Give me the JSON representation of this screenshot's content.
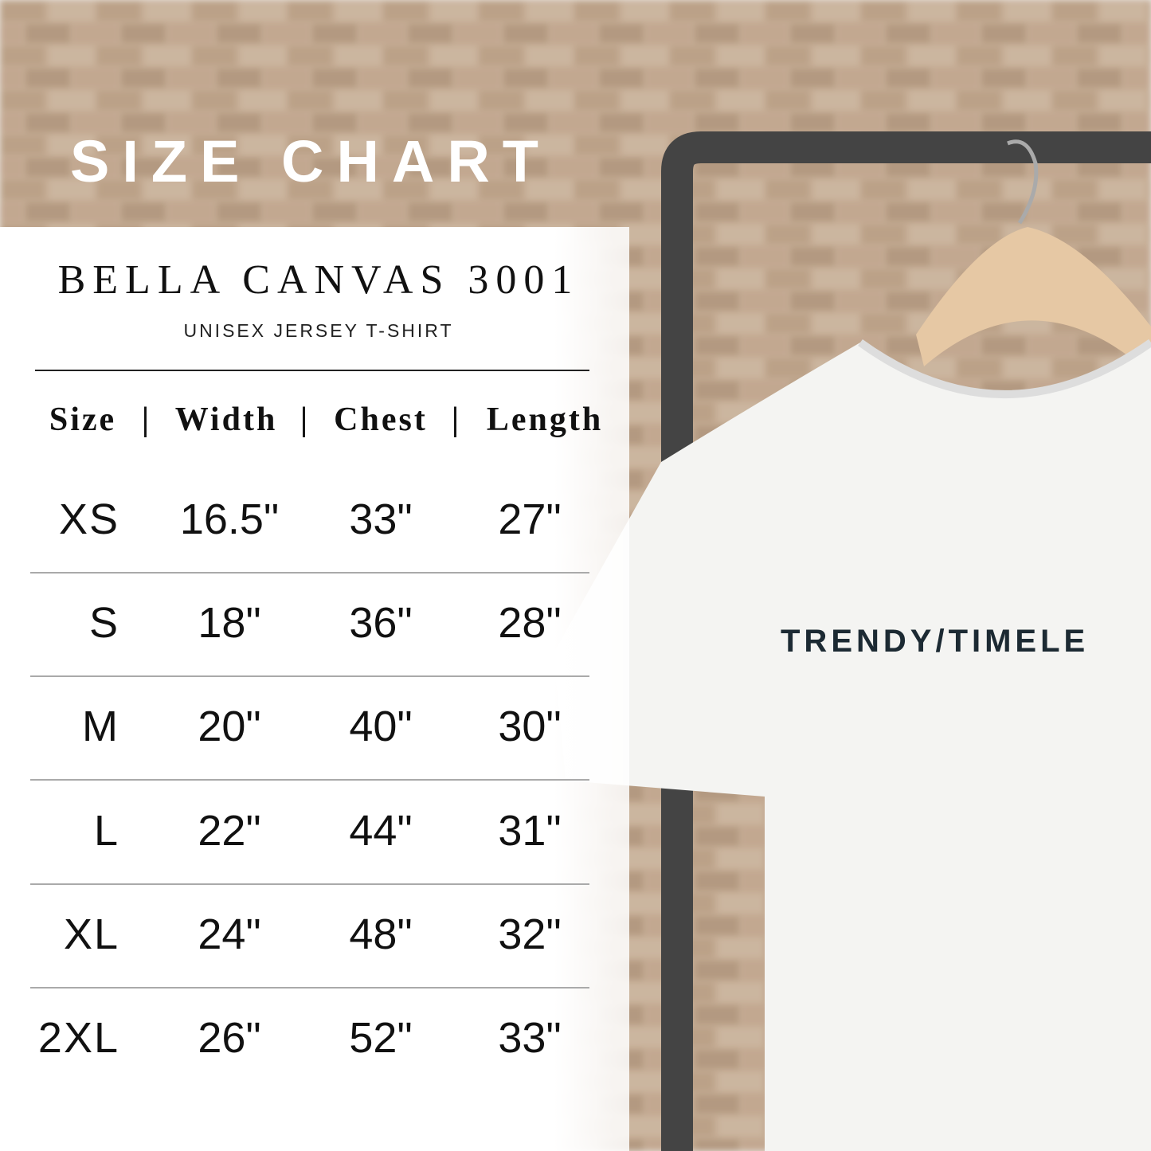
{
  "banner": {
    "title": "SIZE CHART"
  },
  "product": {
    "name": "BELLA CANVAS 3001",
    "subtitle": "UNISEX JERSEY T-SHIRT"
  },
  "table": {
    "header": [
      "Size",
      "Width",
      "Chest",
      "Length"
    ],
    "separator": "|",
    "rows": [
      [
        "XS",
        "16.5\"",
        "33\"",
        "27\""
      ],
      [
        "S",
        "18\"",
        "36\"",
        "28\""
      ],
      [
        "M",
        "20\"",
        "40\"",
        "30\""
      ],
      [
        "L",
        "22\"",
        "44\"",
        "31\""
      ],
      [
        "XL",
        "24\"",
        "48\"",
        "32\""
      ],
      [
        "2XL",
        "26\"",
        "52\"",
        "33\""
      ]
    ]
  },
  "shirt": {
    "print": "TRENDY/TIMELE"
  }
}
